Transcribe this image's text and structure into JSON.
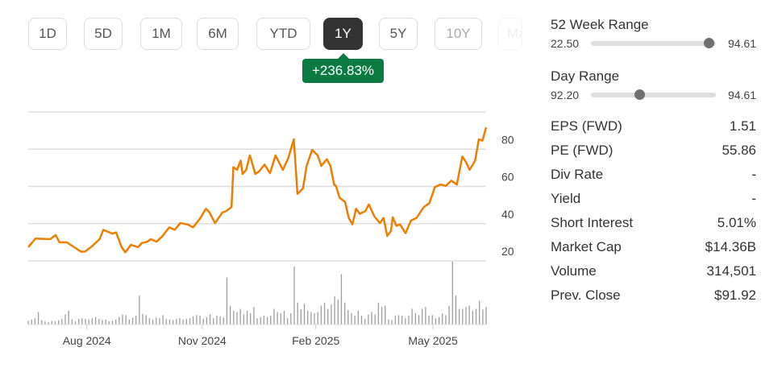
{
  "range_buttons": [
    {
      "label": "1D"
    },
    {
      "label": "5D"
    },
    {
      "label": "1M"
    },
    {
      "label": "6M"
    },
    {
      "label": "YTD"
    },
    {
      "label": "1Y",
      "active": true
    },
    {
      "label": "5Y"
    },
    {
      "label": "10Y"
    },
    {
      "label": "Max"
    }
  ],
  "change_badge": "+236.83%",
  "colors": {
    "line": "#f07d00",
    "badge": "#0b7a43",
    "volume": "#9e9e9e",
    "grid": "#dddddd"
  },
  "ranges": {
    "week52": {
      "label": "52 Week Range",
      "low": "22.50",
      "high": "94.61",
      "position": 0.94
    },
    "day": {
      "label": "Day Range",
      "low": "92.20",
      "high": "94.61",
      "position": 0.39
    }
  },
  "stats": [
    {
      "label": "EPS (FWD)",
      "value": "1.51"
    },
    {
      "label": "PE (FWD)",
      "value": "55.86"
    },
    {
      "label": "Div Rate",
      "value": "-"
    },
    {
      "label": "Yield",
      "value": "-"
    },
    {
      "label": "Short Interest",
      "value": "5.01%"
    },
    {
      "label": "Market Cap",
      "value": "$14.36B"
    },
    {
      "label": "Volume",
      "value": "314,501"
    },
    {
      "label": "Prev. Close",
      "value": "$91.92"
    }
  ],
  "chart_data": {
    "type": "line",
    "ylim": [
      20,
      100
    ],
    "xlim": [
      0,
      250
    ],
    "yticks": [
      {
        "v": 20,
        "label": "20"
      },
      {
        "v": 40,
        "label": "40"
      },
      {
        "v": 60,
        "label": "60"
      },
      {
        "v": 80,
        "label": "80"
      }
    ],
    "xticks": [
      {
        "t": 32,
        "label": "Aug 2024"
      },
      {
        "t": 95,
        "label": "Nov 2024"
      },
      {
        "t": 157,
        "label": "Feb 2025"
      },
      {
        "t": 221,
        "label": "May 2025"
      }
    ],
    "price": [
      [
        0,
        27.4
      ],
      [
        4,
        32
      ],
      [
        12,
        31.7
      ],
      [
        15,
        33.9
      ],
      [
        17,
        30
      ],
      [
        21,
        30
      ],
      [
        25,
        27.4
      ],
      [
        29,
        24.9
      ],
      [
        31,
        25
      ],
      [
        35,
        28
      ],
      [
        39,
        31.7
      ],
      [
        41,
        36.7
      ],
      [
        46,
        34.6
      ],
      [
        48,
        35.3
      ],
      [
        51,
        27.4
      ],
      [
        53,
        24.6
      ],
      [
        56,
        28.6
      ],
      [
        60,
        27.4
      ],
      [
        62,
        29.6
      ],
      [
        65,
        30.3
      ],
      [
        67,
        31.7
      ],
      [
        70,
        30.3
      ],
      [
        73,
        33
      ],
      [
        77,
        38
      ],
      [
        80,
        36.7
      ],
      [
        83,
        40.3
      ],
      [
        87,
        39.6
      ],
      [
        90,
        38
      ],
      [
        94,
        43
      ],
      [
        97,
        48
      ],
      [
        99,
        46
      ],
      [
        102,
        40.3
      ],
      [
        106,
        46
      ],
      [
        108,
        46.7
      ],
      [
        111,
        48.9
      ],
      [
        112,
        70.3
      ],
      [
        114,
        68.9
      ],
      [
        116,
        73.9
      ],
      [
        117,
        66.7
      ],
      [
        119,
        68.9
      ],
      [
        121,
        76.7
      ],
      [
        124,
        66.7
      ],
      [
        126,
        68
      ],
      [
        129,
        71.7
      ],
      [
        132,
        67.1
      ],
      [
        135,
        76.7
      ],
      [
        139,
        68.9
      ],
      [
        142,
        75.3
      ],
      [
        145,
        85.3
      ],
      [
        147,
        56
      ],
      [
        150,
        58.9
      ],
      [
        152,
        71
      ],
      [
        155,
        79.6
      ],
      [
        158,
        76.7
      ],
      [
        160,
        71
      ],
      [
        163,
        74.6
      ],
      [
        165,
        71
      ],
      [
        167,
        61
      ],
      [
        168,
        60.3
      ],
      [
        170,
        53.9
      ],
      [
        173,
        51.7
      ],
      [
        175,
        43.1
      ],
      [
        177,
        39.6
      ],
      [
        179,
        48
      ],
      [
        181,
        45.3
      ],
      [
        184,
        46.7
      ],
      [
        186,
        50.3
      ],
      [
        189,
        43.9
      ],
      [
        192,
        40.3
      ],
      [
        194,
        43.1
      ],
      [
        196,
        33.4
      ],
      [
        198,
        36
      ],
      [
        199,
        43.4
      ],
      [
        201,
        38.9
      ],
      [
        203,
        39.6
      ],
      [
        206,
        34.9
      ],
      [
        209,
        41.7
      ],
      [
        212,
        43.1
      ],
      [
        216,
        48.9
      ],
      [
        219,
        51
      ],
      [
        222,
        59.6
      ],
      [
        225,
        61
      ],
      [
        228,
        60.3
      ],
      [
        231,
        63.1
      ],
      [
        234,
        61
      ],
      [
        237,
        76
      ],
      [
        239,
        73.1
      ],
      [
        241,
        68.9
      ],
      [
        244,
        73.9
      ],
      [
        246,
        85.3
      ],
      [
        248,
        84.6
      ],
      [
        250,
        91.7
      ]
    ],
    "volume": [
      6,
      8,
      10,
      20,
      7,
      5,
      4,
      6,
      5,
      7,
      9,
      16,
      22,
      8,
      5,
      9,
      10,
      9,
      8,
      10,
      12,
      9,
      7,
      8,
      5,
      6,
      8,
      12,
      16,
      15,
      8,
      11,
      14,
      46,
      17,
      15,
      10,
      8,
      11,
      10,
      15,
      9,
      8,
      7,
      9,
      10,
      8,
      9,
      10,
      13,
      15,
      14,
      9,
      12,
      16,
      10,
      14,
      13,
      11,
      75,
      30,
      22,
      20,
      25,
      16,
      22,
      18,
      28,
      10,
      12,
      14,
      12,
      14,
      25,
      20,
      18,
      22,
      10,
      18,
      92,
      35,
      24,
      33,
      22,
      20,
      18,
      20,
      30,
      35,
      25,
      32,
      45,
      40,
      80,
      35,
      23,
      18,
      14,
      22,
      14,
      9,
      16,
      20,
      16,
      35,
      28,
      30,
      8,
      7,
      14,
      15,
      14,
      10,
      14,
      25,
      18,
      15,
      25,
      28,
      14,
      15,
      10,
      12,
      18,
      15,
      30,
      100,
      46,
      25,
      25,
      28,
      30,
      22,
      25,
      38,
      24,
      28
    ],
    "type_volume": "bar"
  }
}
